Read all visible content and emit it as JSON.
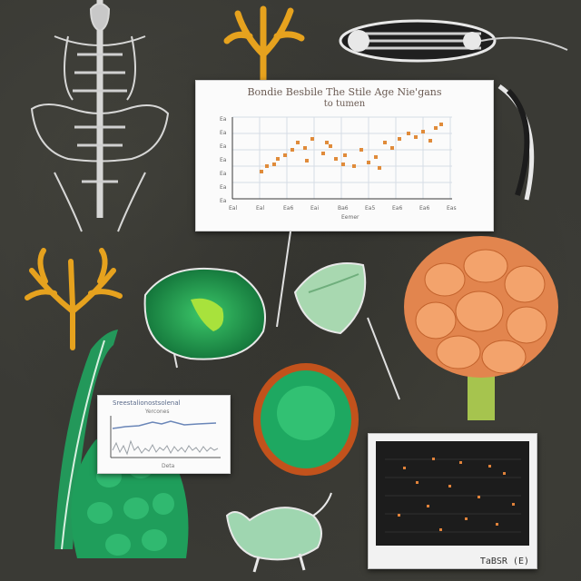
{
  "scene": {
    "background_color": "#3a3a35",
    "subjects": [
      "skeleton-illustration",
      "orange-coral",
      "bone-fragment",
      "green-leaf-cell",
      "green-pod",
      "orange-brain-cluster",
      "green-cell-sphere",
      "green-stalk",
      "green-lobed-mass",
      "green-creature"
    ]
  },
  "top_chart": {
    "title_line1": "Bondie Besbile The Stile Age Nie'gans",
    "title_line2": "to tumen",
    "x_ticks": [
      "Eal",
      "Eal",
      "Ea6",
      "Eai",
      "Ba6",
      "Ea5",
      "Ea6",
      "Ea6",
      "Eas"
    ],
    "x_label": "Eemer",
    "y_ticks": [
      "Ea",
      "Ea",
      "Ea",
      "Ea",
      "Ea",
      "Ea",
      "Ea"
    ],
    "colors": {
      "points": "#e08b3a",
      "grid": "#d6dce6",
      "axis": "#3a3a3a"
    }
  },
  "left_chart": {
    "title": "Sreestalionostsolenal",
    "subtitle": "Yercones",
    "footer": "Deta",
    "colors": {
      "line": "#6a86b8",
      "noise": "#9aa0a6"
    }
  },
  "dark_chart": {
    "caption": "TaBSR (E)",
    "colors": {
      "background": "#1c1c1c",
      "points": "#e0823a"
    }
  }
}
